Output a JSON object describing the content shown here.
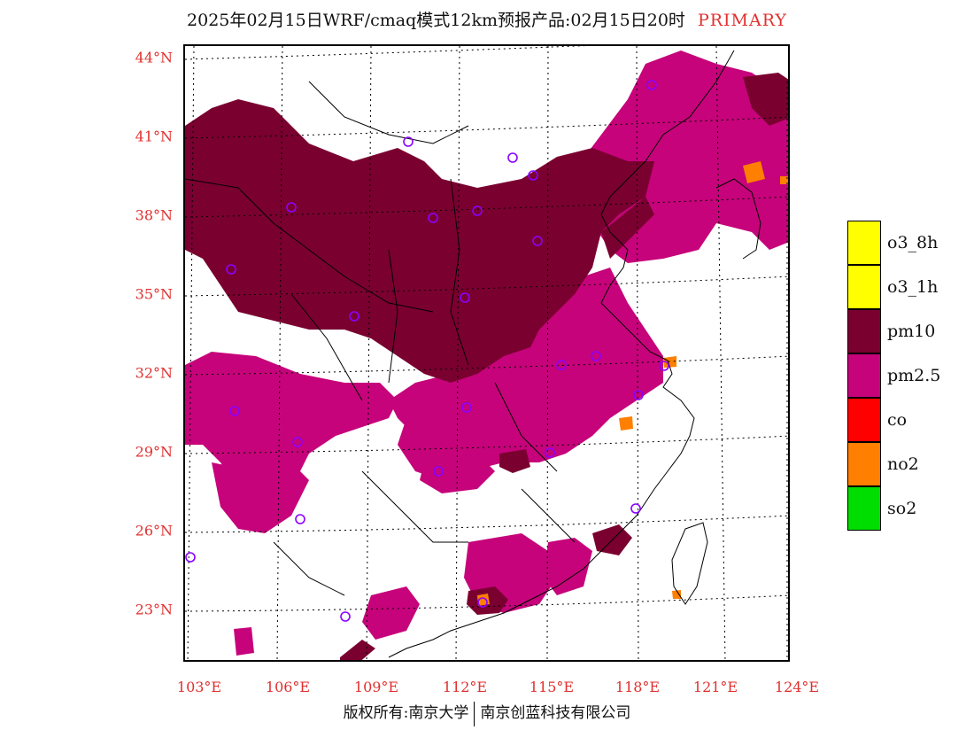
{
  "title": {
    "text": "2025年02月15日WRF/cmaq模式12km预报产品:02月15日20时",
    "primary_label": "PRIMARY",
    "primary_color": "#e0302f"
  },
  "map": {
    "lat_labels": [
      "44°N",
      "41°N",
      "38°N",
      "35°N",
      "32°N",
      "29°N",
      "26°N",
      "23°N"
    ],
    "lon_labels": [
      "103°E",
      "106°E",
      "109°E",
      "112°E",
      "115°E",
      "118°E",
      "121°E",
      "124°E"
    ],
    "label_color": "#e0302f",
    "colors": {
      "pm10": "#7a0030",
      "pm25": "#c6037a",
      "no2": "#ff7f00",
      "co": "#ff0000"
    },
    "station_marker_color": "#8b00ff"
  },
  "legend": {
    "items": [
      {
        "label": "o3_8h",
        "color": "#ffff00"
      },
      {
        "label": "o3_1h",
        "color": "#ffff00"
      },
      {
        "label": "pm10",
        "color": "#7a0030"
      },
      {
        "label": "pm2.5",
        "color": "#c6037a"
      },
      {
        "label": "co",
        "color": "#ff0000"
      },
      {
        "label": "no2",
        "color": "#ff7f00"
      },
      {
        "label": "so2",
        "color": "#00dd00"
      }
    ]
  },
  "footer": {
    "left": "版权所有:南京大学",
    "right": "南京创蓝科技有限公司"
  }
}
